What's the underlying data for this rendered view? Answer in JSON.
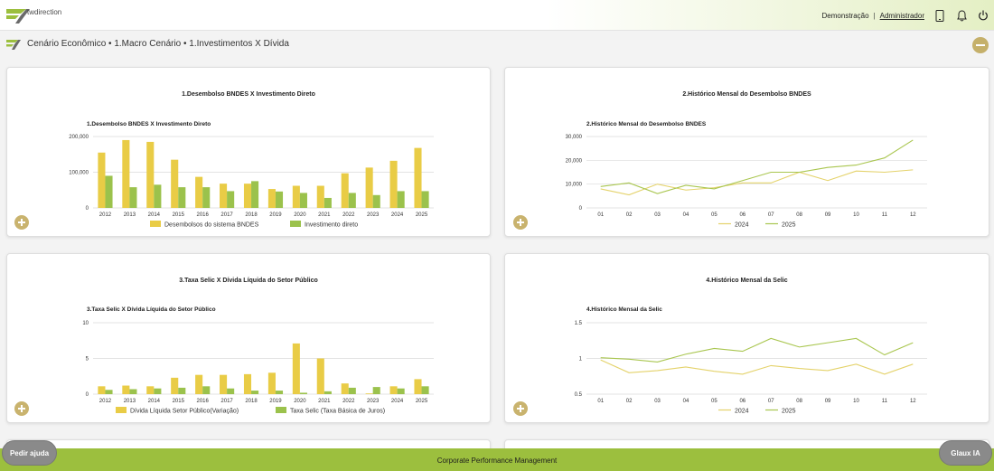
{
  "brand": {
    "logo_text": "twdirection"
  },
  "topbar": {
    "user_mode": "Demonstração",
    "separator": "|",
    "admin_link": "Administrador",
    "icons": [
      "tablet-icon",
      "bell-icon",
      "power-icon"
    ]
  },
  "breadcrumb": "Cenário Econômico • 1.Macro Cenário • 1.Investimentos X Dívida",
  "colors": {
    "bar1": "#e9cc46",
    "bar2": "#9bc24c",
    "line2024": "#e4d26a",
    "line2025": "#a9c64f",
    "footer": "#9cbf3e",
    "add_button": "#c9b36e"
  },
  "cards": [
    {
      "title": "1.Desembolso BNDES X Investimento Direto"
    },
    {
      "title": "2.Histórico Mensal do Desembolso BNDES"
    },
    {
      "title": "3.Taxa Selic X Dívida Líquida do Setor Público"
    },
    {
      "title": "4.Histórico Mensal da Selic"
    }
  ],
  "chart_data": [
    {
      "type": "bar",
      "title": "1.Desembolso BNDES X Investimento Direto",
      "categories": [
        "2012",
        "2013",
        "2014",
        "2015",
        "2016",
        "2017",
        "2018",
        "2019",
        "2020",
        "2021",
        "2022",
        "2023",
        "2024",
        "2025"
      ],
      "series": [
        {
          "name": "Desembolsos do sistema BNDES",
          "values": [
            155000,
            190000,
            185000,
            135000,
            87000,
            68000,
            68000,
            53000,
            62000,
            62000,
            97000,
            113000,
            132000,
            168000
          ]
        },
        {
          "name": "Investimento direto",
          "values": [
            90000,
            58000,
            65000,
            58000,
            58000,
            47000,
            75000,
            46000,
            42000,
            28000,
            42000,
            36000,
            47000,
            47000
          ]
        }
      ],
      "y_ticks": [
        "200,000",
        "100,000",
        "0"
      ],
      "ylim": [
        0,
        200000
      ],
      "legend_position": "bottom"
    },
    {
      "type": "line",
      "title": "2.Histórico Mensal do Desembolso BNDES",
      "categories": [
        "01",
        "02",
        "03",
        "04",
        "05",
        "06",
        "07",
        "08",
        "09",
        "10",
        "11",
        "12"
      ],
      "series": [
        {
          "name": "2024",
          "values": [
            8000,
            5500,
            10000,
            7500,
            8500,
            10500,
            10500,
            15000,
            11500,
            15500,
            15000,
            16000
          ]
        },
        {
          "name": "2025",
          "values": [
            9000,
            10500,
            6000,
            9500,
            8000,
            11500,
            15000,
            15000,
            17000,
            18000,
            21000,
            28500
          ]
        }
      ],
      "y_ticks": [
        "30,000",
        "20,000",
        "10,000",
        "0"
      ],
      "ylim": [
        0,
        30000
      ],
      "legend_position": "bottom"
    },
    {
      "type": "bar",
      "title": "3.Taxa Selic X Dívida Líquida do Setor Público",
      "categories": [
        "2012",
        "2013",
        "2014",
        "2015",
        "2016",
        "2017",
        "2018",
        "2019",
        "2020",
        "2021",
        "2022",
        "2023",
        "2024",
        "2025"
      ],
      "series": [
        {
          "name": "Dívida Líquida Setor Público(Variação)",
          "values": [
            1.1,
            1.2,
            1.1,
            2.3,
            2.7,
            2.7,
            2.8,
            3.0,
            7.1,
            5.0,
            1.5,
            0.1,
            1.1,
            2.1
          ]
        },
        {
          "name": "Taxa Selic (Taxa Básica de Juros)",
          "values": [
            0.6,
            0.7,
            0.8,
            0.9,
            1.1,
            0.8,
            0.5,
            0.5,
            0.2,
            0.4,
            0.9,
            1.0,
            0.8,
            1.1
          ]
        }
      ],
      "y_ticks": [
        "10",
        "5",
        "0"
      ],
      "ylim": [
        0,
        10
      ],
      "legend_position": "bottom"
    },
    {
      "type": "line",
      "title": "4.Histórico Mensal da Selic",
      "categories": [
        "01",
        "02",
        "03",
        "04",
        "05",
        "06",
        "07",
        "08",
        "09",
        "10",
        "11",
        "12"
      ],
      "series": [
        {
          "name": "2024",
          "values": [
            0.98,
            0.8,
            0.83,
            0.88,
            0.82,
            0.78,
            0.9,
            0.86,
            0.83,
            0.92,
            0.78,
            0.92
          ]
        },
        {
          "name": "2025",
          "values": [
            1.01,
            0.99,
            0.95,
            1.06,
            1.14,
            1.1,
            1.28,
            1.16,
            1.22,
            1.28,
            1.05,
            1.22
          ]
        }
      ],
      "y_ticks": [
        "1.5",
        "1",
        "0.5"
      ],
      "ylim": [
        0.5,
        1.5
      ],
      "legend_position": "bottom"
    }
  ],
  "footer": {
    "text": "Corporate Performance Management",
    "help_button": "Pedir ajuda",
    "ai_button": "Glaux IA"
  }
}
